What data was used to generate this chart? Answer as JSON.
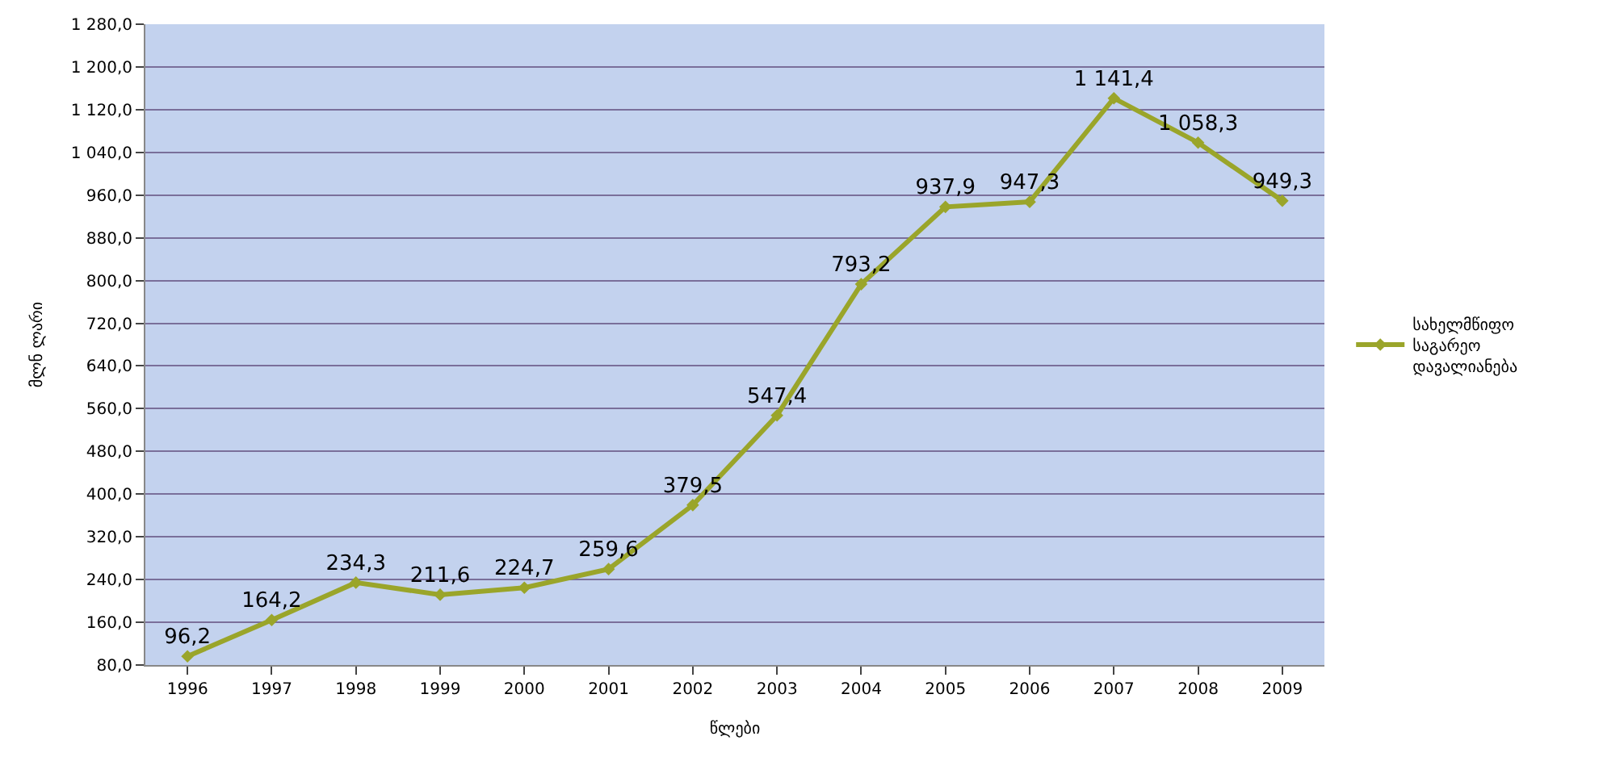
{
  "chart_data": {
    "type": "line",
    "xlabel": "წლები",
    "ylabel": "მლნ ლარი",
    "categories": [
      "1996",
      "1997",
      "1998",
      "1999",
      "2000",
      "2001",
      "2002",
      "2003",
      "2004",
      "2005",
      "2006",
      "2007",
      "2008",
      "2009"
    ],
    "series": [
      {
        "name": "სახელმწიფო საგარეო დავალიანება",
        "color": "#9aa52a",
        "values": [
          96.2,
          164.2,
          234.3,
          211.6,
          224.7,
          259.6,
          379.5,
          547.4,
          793.2,
          937.9,
          947.3,
          1141.4,
          1058.3,
          949.3
        ],
        "value_labels": [
          "96,2",
          "164,2",
          "234,3",
          "211,6",
          "224,7",
          "259,6",
          "379,5",
          "547,4",
          "793,2",
          "937,9",
          "947,3",
          "1 141,4",
          "1 058,3",
          "949,3"
        ]
      }
    ],
    "ylim": [
      80,
      1280
    ],
    "yticks": [
      {
        "value": 80,
        "label": "80,0"
      },
      {
        "value": 160,
        "label": "160,0"
      },
      {
        "value": 240,
        "label": "240,0"
      },
      {
        "value": 320,
        "label": "320,0"
      },
      {
        "value": 400,
        "label": "400,0"
      },
      {
        "value": 480,
        "label": "480,0"
      },
      {
        "value": 560,
        "label": "560,0"
      },
      {
        "value": 640,
        "label": "640,0"
      },
      {
        "value": 720,
        "label": "720,0"
      },
      {
        "value": 800,
        "label": "800,0"
      },
      {
        "value": 880,
        "label": "880,0"
      },
      {
        "value": 960,
        "label": "960,0"
      },
      {
        "value": 1040,
        "label": "1 040,0"
      },
      {
        "value": 1120,
        "label": "1 120,0"
      },
      {
        "value": 1200,
        "label": "1 200,0"
      },
      {
        "value": 1280,
        "label": "1 280,0"
      }
    ],
    "grid": "y",
    "legend": "right",
    "marker": "diamond",
    "line_style": "solid"
  }
}
